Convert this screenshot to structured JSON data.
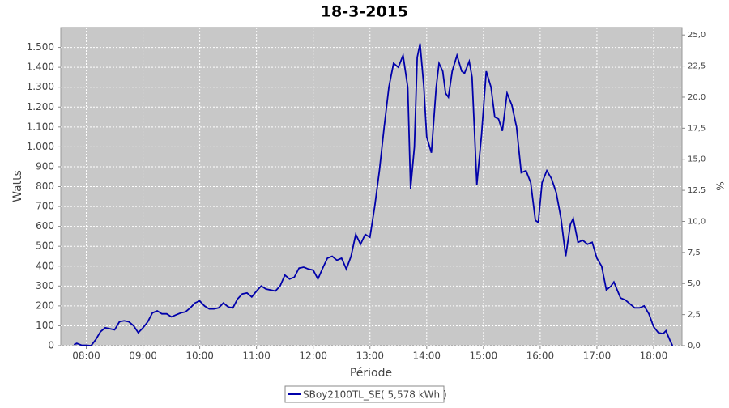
{
  "chart_data": {
    "type": "line",
    "title": "18-3-2015",
    "x_label": "Période",
    "y_label": "Watts",
    "y2_label": "%",
    "xlim": [
      "07:33",
      "18:30"
    ],
    "xticks": [
      "08:00",
      "09:00",
      "10:00",
      "11:00",
      "12:00",
      "13:00",
      "14:00",
      "15:00",
      "16:00",
      "17:00",
      "18:00"
    ],
    "ylim": [
      0,
      1600
    ],
    "yticks": [
      0,
      100,
      200,
      300,
      400,
      500,
      600,
      700,
      800,
      900,
      {
        "value": 1000,
        "label": "1.000"
      },
      {
        "value": 1100,
        "label": "1.100"
      },
      {
        "value": 1200,
        "label": "1.200"
      },
      {
        "value": 1300,
        "label": "1.300"
      },
      {
        "value": 1400,
        "label": "1.400"
      },
      {
        "value": 1500,
        "label": "1.500"
      }
    ],
    "y2lim": [
      0,
      25.6
    ],
    "y2ticks": [
      {
        "value": 0,
        "label": "0,0"
      },
      {
        "value": 2.5,
        "label": "2,5"
      },
      {
        "value": 5,
        "label": "5,0"
      },
      {
        "value": 7.5,
        "label": "7,5"
      },
      {
        "value": 10,
        "label": "10,0"
      },
      {
        "value": 12.5,
        "label": "12,5"
      },
      {
        "value": 15,
        "label": "15,0"
      },
      {
        "value": 17.5,
        "label": "17,5"
      },
      {
        "value": 20,
        "label": "20,0"
      },
      {
        "value": 22.5,
        "label": "22,5"
      },
      {
        "value": 25,
        "label": "25,0"
      }
    ],
    "grid": true,
    "x": [
      "07:47",
      "07:50",
      "07:55",
      "08:00",
      "08:05",
      "08:10",
      "08:15",
      "08:20",
      "08:25",
      "08:30",
      "08:35",
      "08:40",
      "08:45",
      "08:50",
      "08:55",
      "09:00",
      "09:05",
      "09:10",
      "09:15",
      "09:20",
      "09:25",
      "09:30",
      "09:35",
      "09:40",
      "09:45",
      "09:50",
      "09:55",
      "10:00",
      "10:05",
      "10:10",
      "10:15",
      "10:20",
      "10:25",
      "10:30",
      "10:35",
      "10:40",
      "10:45",
      "10:50",
      "10:55",
      "11:00",
      "11:05",
      "11:10",
      "11:15",
      "11:20",
      "11:25",
      "11:30",
      "11:35",
      "11:40",
      "11:45",
      "11:50",
      "11:55",
      "12:00",
      "12:05",
      "12:10",
      "12:15",
      "12:20",
      "12:25",
      "12:30",
      "12:35",
      "12:40",
      "12:45",
      "12:50",
      "12:55",
      "13:00",
      "13:05",
      "13:10",
      "13:15",
      "13:20",
      "13:25",
      "13:30",
      "13:35",
      "13:40",
      "13:43",
      "13:47",
      "13:50",
      "13:53",
      "13:57",
      "14:00",
      "14:05",
      "14:10",
      "14:13",
      "14:17",
      "14:20",
      "14:23",
      "14:27",
      "14:32",
      "14:37",
      "14:40",
      "14:45",
      "14:48",
      "14:53",
      "14:58",
      "15:03",
      "15:08",
      "15:12",
      "15:16",
      "15:20",
      "15:25",
      "15:30",
      "15:35",
      "15:40",
      "15:45",
      "15:50",
      "15:55",
      "15:58",
      "16:02",
      "16:07",
      "16:12",
      "16:17",
      "16:22",
      "16:27",
      "16:32",
      "16:35",
      "16:40",
      "16:45",
      "16:50",
      "16:55",
      "17:00",
      "17:05",
      "17:10",
      "17:15",
      "17:18",
      "17:25",
      "17:30",
      "17:35",
      "17:40",
      "17:45",
      "17:50",
      "17:55",
      "18:00",
      "18:05",
      "18:10",
      "18:13",
      "18:17",
      "18:20"
    ],
    "series": [
      {
        "name": "SBoy2100TL_SE( 5,578 kWh )",
        "color": "#0000aa",
        "values": [
          5,
          12,
          2,
          2,
          0,
          30,
          70,
          90,
          85,
          80,
          120,
          125,
          120,
          100,
          65,
          90,
          120,
          165,
          175,
          160,
          160,
          145,
          155,
          165,
          170,
          190,
          215,
          225,
          200,
          185,
          185,
          190,
          215,
          195,
          190,
          235,
          260,
          265,
          245,
          275,
          300,
          285,
          280,
          275,
          300,
          355,
          335,
          345,
          390,
          395,
          385,
          380,
          335,
          390,
          440,
          450,
          430,
          440,
          385,
          450,
          560,
          510,
          560,
          545,
          700,
          880,
          1100,
          1300,
          1420,
          1400,
          1460,
          1300,
          790,
          1000,
          1450,
          1520,
          1300,
          1050,
          970,
          1300,
          1420,
          1380,
          1270,
          1250,
          1380,
          1460,
          1380,
          1370,
          1430,
          1350,
          810,
          1060,
          1380,
          1300,
          1150,
          1140,
          1080,
          1270,
          1210,
          1100,
          870,
          880,
          820,
          630,
          620,
          820,
          880,
          840,
          770,
          640,
          450,
          610,
          640,
          520,
          530,
          510,
          520,
          440,
          400,
          280,
          300,
          320,
          240,
          230,
          210,
          190,
          190,
          200,
          160,
          95,
          65,
          60,
          75,
          30,
          0
        ]
      }
    ]
  }
}
